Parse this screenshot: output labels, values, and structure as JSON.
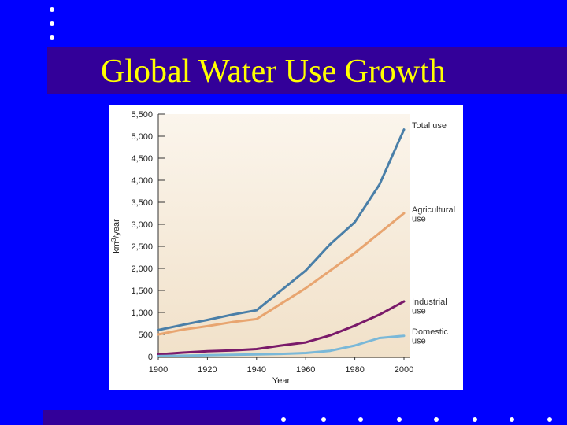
{
  "slide": {
    "title": "Global Water Use Growth",
    "colors": {
      "background": "#0000ff",
      "title_bar": "#330099",
      "title_text": "#ffff00",
      "plot_bg": "#f6ead8"
    }
  },
  "chart_data": {
    "type": "line",
    "title": "",
    "xlabel": "Year",
    "ylabel": "km³/year",
    "ylabel_main": "km",
    "ylabel_sup": "3",
    "ylabel_rest": "/year",
    "xlim": [
      1900,
      2000
    ],
    "ylim": [
      0,
      5500
    ],
    "xticks": [
      1900,
      1920,
      1940,
      1960,
      1980,
      2000
    ],
    "xtick_labels": [
      "1900",
      "1920",
      "1940",
      "1960",
      "1980",
      "2000"
    ],
    "yticks": [
      0,
      500,
      1000,
      1500,
      2000,
      2500,
      3000,
      3500,
      4000,
      4500,
      5000,
      5500
    ],
    "ytick_labels": [
      "0",
      "500",
      "1,000",
      "1,500",
      "2,000",
      "2,500",
      "3,000",
      "3,500",
      "4,000",
      "4,500",
      "5,000",
      "5,500"
    ],
    "series": [
      {
        "name": "Total use",
        "label_lines": [
          "Total use"
        ],
        "color": "#4a7fa8",
        "x": [
          1900,
          1910,
          1920,
          1930,
          1940,
          1950,
          1960,
          1970,
          1980,
          1990,
          2000
        ],
        "values": [
          600,
          720,
          830,
          950,
          1050,
          1500,
          1950,
          2550,
          3050,
          3900,
          5150
        ]
      },
      {
        "name": "Agricultural use",
        "label_lines": [
          "Agricultural",
          "use"
        ],
        "color": "#e8a570",
        "x": [
          1900,
          1910,
          1920,
          1930,
          1940,
          1950,
          1960,
          1970,
          1980,
          1990,
          2000
        ],
        "values": [
          500,
          610,
          690,
          780,
          850,
          1200,
          1550,
          1950,
          2350,
          2800,
          3250
        ]
      },
      {
        "name": "Industrial use",
        "label_lines": [
          "Industrial",
          "use"
        ],
        "color": "#7a1a6a",
        "x": [
          1900,
          1910,
          1920,
          1930,
          1940,
          1950,
          1960,
          1970,
          1980,
          1990,
          2000
        ],
        "values": [
          50,
          90,
          120,
          140,
          170,
          250,
          320,
          480,
          700,
          950,
          1250
        ]
      },
      {
        "name": "Domestic use",
        "label_lines": [
          "Domestic",
          "use"
        ],
        "color": "#7ab8d8",
        "x": [
          1900,
          1910,
          1920,
          1930,
          1940,
          1950,
          1960,
          1970,
          1980,
          1990,
          2000
        ],
        "values": [
          10,
          20,
          30,
          40,
          50,
          60,
          80,
          130,
          250,
          420,
          470
        ]
      }
    ]
  }
}
